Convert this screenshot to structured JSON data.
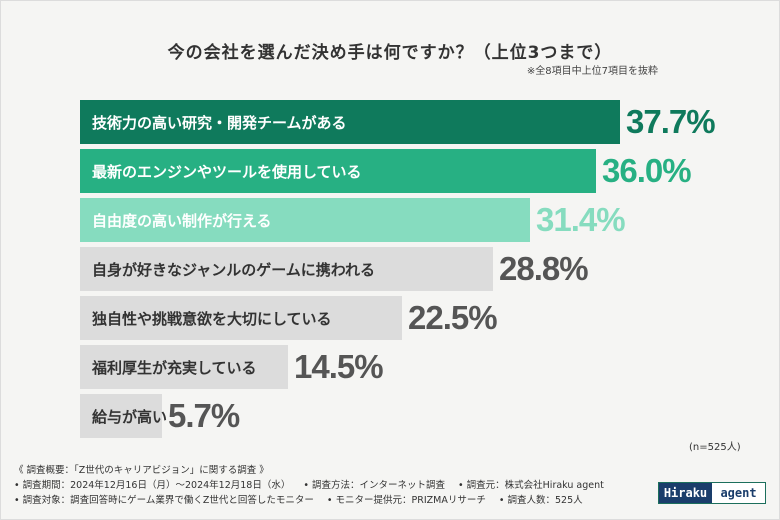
{
  "title": "今の会社を選んだ決め手は何ですか？（上位3つまで）",
  "subtitle": "※全8項目中上位7項目を抜粋",
  "n_note": "(n=525人)",
  "colors": {
    "dark_green": "#0f7a5c",
    "mid_green": "#27b083",
    "light_green": "#86dcbf",
    "gray_bar": "#dcdcdc",
    "gray_text": "#555555"
  },
  "chart_data": {
    "type": "bar",
    "orientation": "horizontal",
    "title": "今の会社を選んだ決め手は何ですか？（上位3つまで）",
    "unit": "%",
    "categories": [
      "技術力の高い研究・開発チームがある",
      "最新のエンジンやツールを使用している",
      "自由度の高い制作が行える",
      "自身が好きなジャンルのゲームに携われる",
      "独自性や挑戦意欲を大切にしている",
      "福利厚生が充実している",
      "給与が高い"
    ],
    "values": [
      37.7,
      36.0,
      31.4,
      28.8,
      22.5,
      14.5,
      5.7
    ],
    "value_labels": [
      "37.7%",
      "36.0%",
      "31.4%",
      "28.8%",
      "22.5%",
      "14.5%",
      "5.7%"
    ],
    "bar_styles": [
      "dark",
      "mid",
      "light",
      "gray",
      "gray",
      "gray",
      "gray"
    ],
    "xlim": [
      0,
      40
    ]
  },
  "footer": {
    "line1": "《 調査概要：「Z世代のキャリアビジョン」に関する調査 》",
    "line2": [
      "• 調査期間：2024年12月16日（月）〜2024年12月18日（水）",
      "• 調査方法：インターネット調査",
      "• 調査元：株式会社Hiraku agent"
    ],
    "line3": [
      "• 調査対象：調査回答時にゲーム業界で働くZ世代と回答したモニター",
      "• モニター提供元：PRIZMAリサーチ",
      "• 調査人数：525人"
    ]
  },
  "logo": {
    "part1": "Hiraku",
    "part2": "agent"
  }
}
